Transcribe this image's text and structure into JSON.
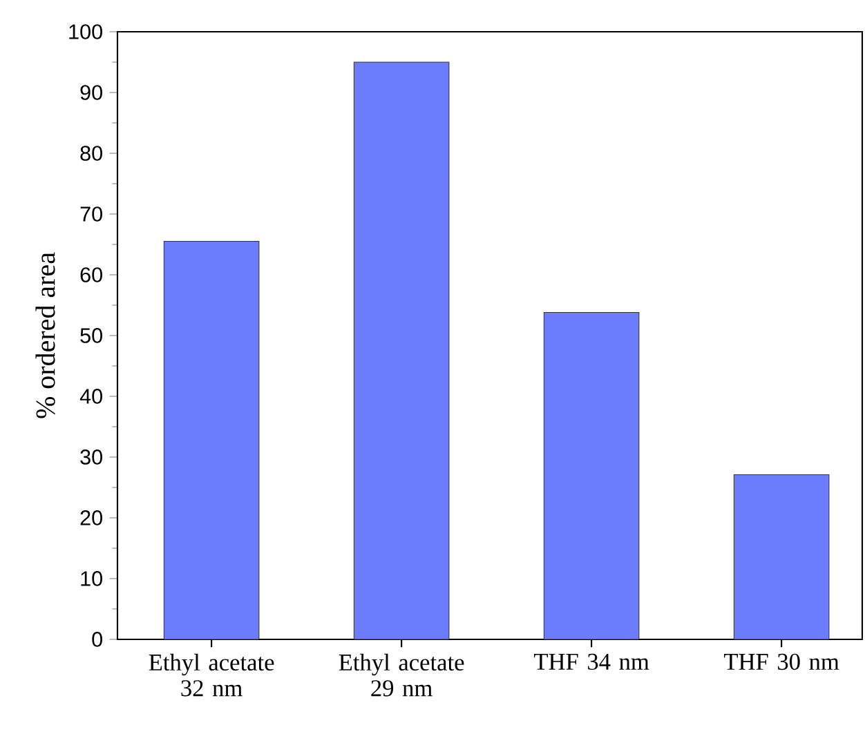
{
  "chart_data": {
    "type": "bar",
    "ylabel": "% ordered area",
    "categories": [
      "Ethyl acetate 32 nm",
      "Ethyl acetate 29 nm",
      "THF 34 nm",
      "THF 30 nm"
    ],
    "values": [
      65.5,
      95,
      53.8,
      27.1
    ],
    "color": "#6b7cfd",
    "ylim": [
      0,
      100
    ],
    "yticks": [
      0,
      10,
      20,
      30,
      40,
      50,
      60,
      70,
      80,
      90,
      100
    ]
  }
}
